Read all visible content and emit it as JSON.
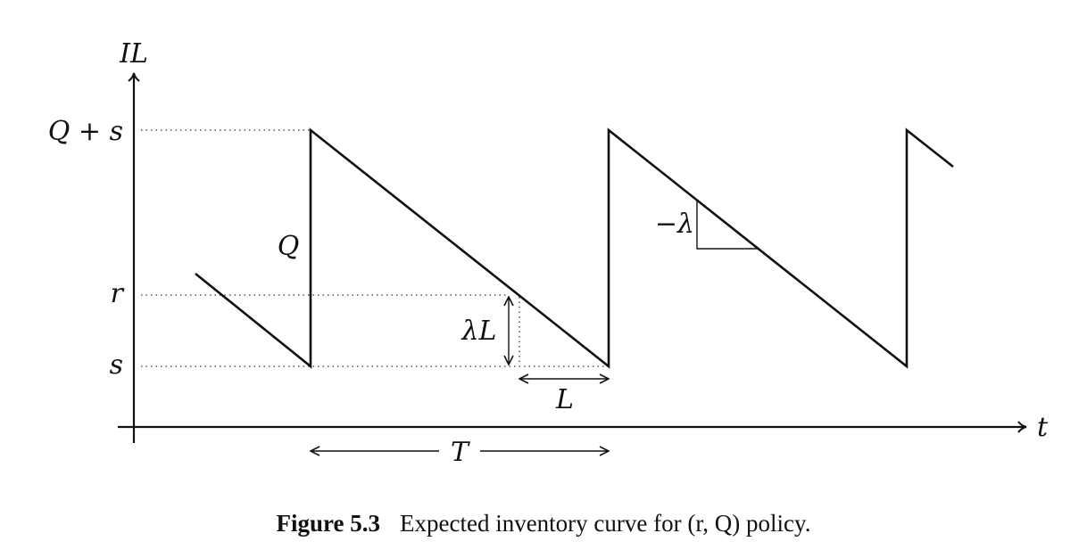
{
  "axes": {
    "y_label": "IL",
    "x_label": "t"
  },
  "levels": {
    "top": "Q + s",
    "reorder": "r",
    "base": "s"
  },
  "annotations": {
    "order_qty": "Q",
    "slope": "−λ",
    "lead_demand": "λL",
    "lead_time": "L",
    "cycle": "T"
  },
  "caption": {
    "number": "Figure 5.3",
    "text": "Expected inventory curve for (r, Q) policy."
  }
}
